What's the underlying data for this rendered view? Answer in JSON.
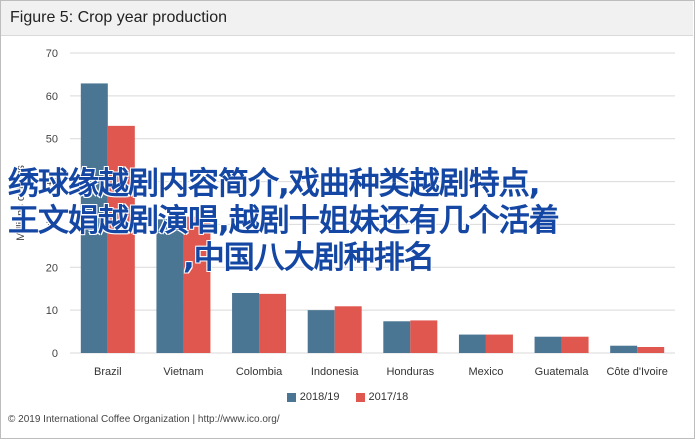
{
  "chart_data": {
    "type": "bar",
    "title": "Figure 5: Crop year production",
    "ylabel": "Millions of bags",
    "xlabel": "",
    "ylim": [
      0,
      70
    ],
    "yticks": [
      0,
      10,
      20,
      30,
      40,
      50,
      60,
      70
    ],
    "categories": [
      "Brazil",
      "Vietnam",
      "Colombia",
      "Indonesia",
      "Honduras",
      "Mexico",
      "Guatemala",
      "Côte d'Ivoire"
    ],
    "series": [
      {
        "name": "2018/19",
        "color": "#4a7593",
        "values": [
          62.9,
          31.2,
          14.0,
          10.0,
          7.4,
          4.3,
          3.8,
          1.7
        ]
      },
      {
        "name": "2017/18",
        "color": "#e0574f",
        "values": [
          53.0,
          31.8,
          13.8,
          10.9,
          7.6,
          4.3,
          3.8,
          1.4
        ]
      }
    ],
    "legend_position": "bottom",
    "grid": true
  },
  "overlay_text": [
    "绣球缘越剧内容简介,戏曲种类越剧特点,",
    "王文娟越剧演唱,越剧十姐妹还有几个活着",
    ",中国八大剧种排名"
  ],
  "footer": "© 2019 International Coffee Organization | http://www.ico.org/"
}
